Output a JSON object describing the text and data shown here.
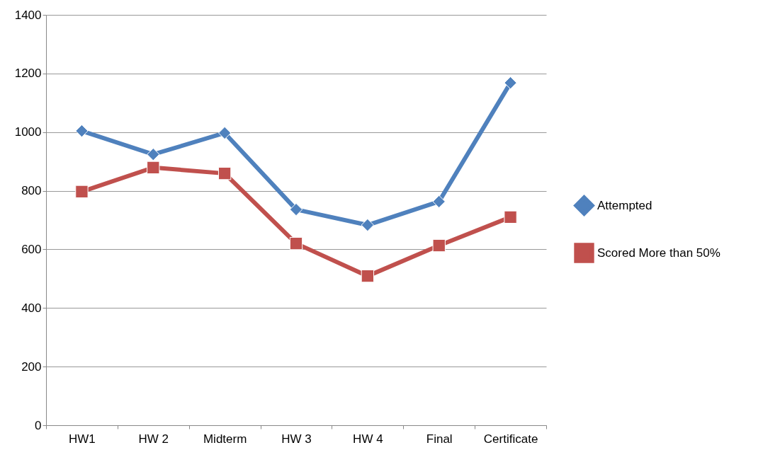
{
  "chart_data": {
    "type": "line",
    "categories": [
      "HW1",
      "HW 2",
      "Midterm",
      "HW 3",
      "HW 4",
      "Final",
      "Certificate"
    ],
    "series": [
      {
        "name": "Attempted",
        "color": "#4f81bd",
        "marker": "diamond",
        "values": [
          1004,
          924,
          997,
          736,
          683,
          763,
          1168
        ]
      },
      {
        "name": "Scored More than 50%",
        "color": "#c0504d",
        "marker": "square",
        "values": [
          797,
          879,
          859,
          620,
          509,
          613,
          710
        ]
      }
    ],
    "ylim": [
      0,
      1400
    ],
    "yticks": [
      0,
      200,
      400,
      600,
      800,
      1000,
      1200,
      1400
    ],
    "grid": "y",
    "legend": "right"
  }
}
